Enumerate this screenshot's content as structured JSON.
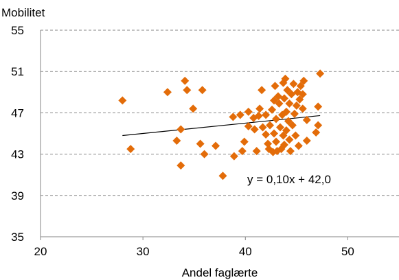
{
  "chart_data": {
    "type": "scatter",
    "title": "",
    "ylabel": "Mobilitet",
    "xlabel": "Andel faglærte",
    "xlim": [
      20,
      55
    ],
    "ylim": [
      35,
      55
    ],
    "xticks": [
      "20",
      "30",
      "40",
      "50"
    ],
    "yticks": [
      "35",
      "39",
      "43",
      "47",
      "51",
      "55"
    ],
    "grid": "horizontal-dashed",
    "marker_color": "#E36C09",
    "trendline_color": "#000000",
    "trendline": {
      "slope": 0.1,
      "intercept": 42.0,
      "x_range": [
        28,
        47.3
      ]
    },
    "annotation": "y = 0,10x + 42,0",
    "points": [
      {
        "x": 28.0,
        "y": 48.2
      },
      {
        "x": 28.8,
        "y": 43.5
      },
      {
        "x": 32.4,
        "y": 49.0
      },
      {
        "x": 33.3,
        "y": 44.3
      },
      {
        "x": 33.7,
        "y": 45.4
      },
      {
        "x": 33.7,
        "y": 41.9
      },
      {
        "x": 34.1,
        "y": 50.1
      },
      {
        "x": 34.3,
        "y": 49.2
      },
      {
        "x": 34.9,
        "y": 47.4
      },
      {
        "x": 35.6,
        "y": 44.0
      },
      {
        "x": 35.8,
        "y": 49.2
      },
      {
        "x": 36.0,
        "y": 43.0
      },
      {
        "x": 37.1,
        "y": 43.8
      },
      {
        "x": 37.8,
        "y": 40.9
      },
      {
        "x": 38.8,
        "y": 46.6
      },
      {
        "x": 38.9,
        "y": 42.8
      },
      {
        "x": 39.5,
        "y": 46.8
      },
      {
        "x": 39.7,
        "y": 43.3
      },
      {
        "x": 39.9,
        "y": 44.2
      },
      {
        "x": 40.3,
        "y": 47.1
      },
      {
        "x": 40.3,
        "y": 45.7
      },
      {
        "x": 40.8,
        "y": 46.5
      },
      {
        "x": 40.9,
        "y": 45.4
      },
      {
        "x": 41.1,
        "y": 43.3
      },
      {
        "x": 41.3,
        "y": 46.7
      },
      {
        "x": 41.4,
        "y": 47.4
      },
      {
        "x": 41.6,
        "y": 49.2
      },
      {
        "x": 41.7,
        "y": 45.6
      },
      {
        "x": 42.0,
        "y": 46.8
      },
      {
        "x": 42.0,
        "y": 44.9
      },
      {
        "x": 42.2,
        "y": 44.0
      },
      {
        "x": 42.3,
        "y": 43.5
      },
      {
        "x": 42.4,
        "y": 45.8
      },
      {
        "x": 42.6,
        "y": 47.3
      },
      {
        "x": 42.7,
        "y": 43.2
      },
      {
        "x": 42.8,
        "y": 48.2
      },
      {
        "x": 42.8,
        "y": 45.0
      },
      {
        "x": 42.9,
        "y": 49.6
      },
      {
        "x": 43.0,
        "y": 46.4
      },
      {
        "x": 43.0,
        "y": 44.2
      },
      {
        "x": 43.1,
        "y": 43.3
      },
      {
        "x": 43.2,
        "y": 48.6
      },
      {
        "x": 43.3,
        "y": 47.9
      },
      {
        "x": 43.4,
        "y": 45.6
      },
      {
        "x": 43.5,
        "y": 43.5
      },
      {
        "x": 43.6,
        "y": 46.8
      },
      {
        "x": 43.7,
        "y": 49.9
      },
      {
        "x": 43.7,
        "y": 44.8
      },
      {
        "x": 43.8,
        "y": 48.4
      },
      {
        "x": 43.8,
        "y": 43.9
      },
      {
        "x": 43.9,
        "y": 50.3
      },
      {
        "x": 44.0,
        "y": 47.1
      },
      {
        "x": 44.0,
        "y": 45.3
      },
      {
        "x": 44.1,
        "y": 49.2
      },
      {
        "x": 44.2,
        "y": 46.2
      },
      {
        "x": 44.3,
        "y": 44.4
      },
      {
        "x": 44.3,
        "y": 47.9
      },
      {
        "x": 44.4,
        "y": 43.3
      },
      {
        "x": 44.5,
        "y": 48.8
      },
      {
        "x": 44.6,
        "y": 45.8
      },
      {
        "x": 44.7,
        "y": 49.8
      },
      {
        "x": 44.8,
        "y": 46.9
      },
      {
        "x": 44.9,
        "y": 44.8
      },
      {
        "x": 45.0,
        "y": 47.7
      },
      {
        "x": 45.1,
        "y": 49.0
      },
      {
        "x": 45.2,
        "y": 43.8
      },
      {
        "x": 45.3,
        "y": 48.3
      },
      {
        "x": 45.4,
        "y": 49.6
      },
      {
        "x": 45.6,
        "y": 48.8
      },
      {
        "x": 45.6,
        "y": 47.4
      },
      {
        "x": 45.7,
        "y": 50.1
      },
      {
        "x": 46.0,
        "y": 46.3
      },
      {
        "x": 46.0,
        "y": 44.3
      },
      {
        "x": 46.9,
        "y": 45.1
      },
      {
        "x": 47.1,
        "y": 45.8
      },
      {
        "x": 47.1,
        "y": 47.6
      },
      {
        "x": 47.3,
        "y": 50.8
      }
    ]
  }
}
